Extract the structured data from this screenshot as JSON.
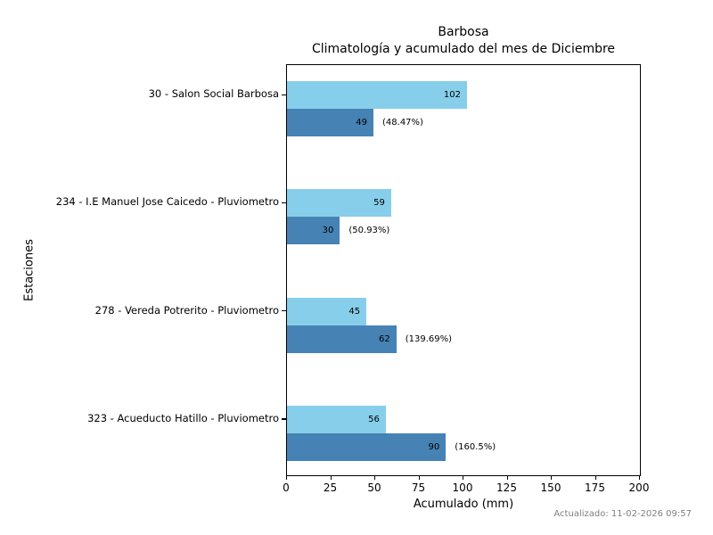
{
  "chart_data": {
    "type": "bar",
    "orientation": "horizontal",
    "title": "Barbosa",
    "subtitle": "Climatología y acumulado del mes de Diciembre",
    "xlabel": "Acumulado (mm)",
    "ylabel": "Estaciones",
    "xlim": [
      0,
      200
    ],
    "xticks": [
      0,
      25,
      50,
      75,
      100,
      125,
      150,
      175,
      200
    ],
    "grid": false,
    "legend_position": "none",
    "categories": [
      "30 - Salon Social Barbosa",
      "234 - I.E Manuel Jose Caicedo - Pluviometro",
      "278 - Vereda Potrerito - Pluviometro",
      "323 - Acueducto Hatillo - Pluviometro"
    ],
    "series": [
      {
        "name": "Climatología",
        "color": "#87CEEB",
        "values": [
          102,
          59,
          45,
          56
        ]
      },
      {
        "name": "Acumulado",
        "color": "#4682B4",
        "values": [
          49,
          30,
          62,
          90
        ]
      }
    ],
    "percent_labels": [
      "(48.47%)",
      "(50.93%)",
      "(139.69%)",
      "(160.5%)"
    ],
    "colors": {
      "climatology_bar": "#87CEEB",
      "accumulated_bar": "#4682B4",
      "note_text": "#7f7f7f"
    }
  },
  "footer": {
    "updated": "Actualizado: 11-02-2026 09:57"
  }
}
